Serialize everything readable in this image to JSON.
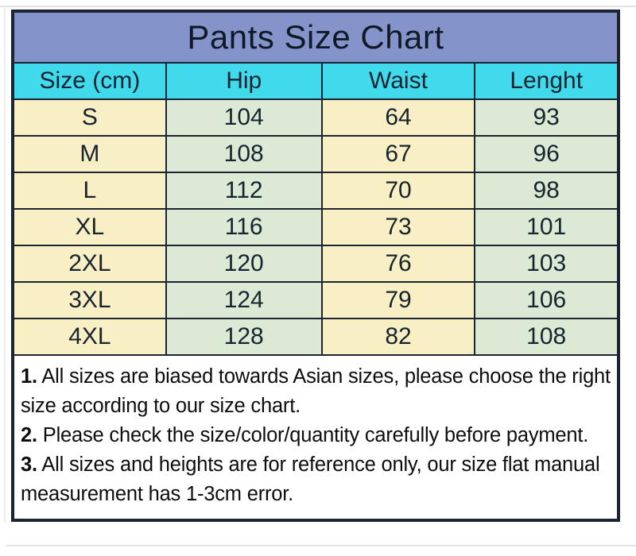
{
  "chart_data": {
    "type": "table",
    "title": "Pants Size Chart",
    "columns": [
      "Size (cm)",
      "Hip",
      "Waist",
      "Lenght"
    ],
    "rows": [
      [
        "S",
        "104",
        "64",
        "93"
      ],
      [
        "M",
        "108",
        "67",
        "96"
      ],
      [
        "L",
        "112",
        "70",
        "98"
      ],
      [
        "XL",
        "116",
        "73",
        "101"
      ],
      [
        "2XL",
        "120",
        "76",
        "103"
      ],
      [
        "3XL",
        "124",
        "79",
        "106"
      ],
      [
        "4XL",
        "128",
        "82",
        "108"
      ]
    ]
  },
  "notes": [
    {
      "num": "1.",
      "text": "All sizes are biased towards Asian sizes, please choose the right size according to our size chart."
    },
    {
      "num": "2.",
      "text": "Please check the size/color/quantity carefully before payment."
    },
    {
      "num": "3.",
      "text": "All sizes and heights are for reference only, our size flat manual measurement has 1-3cm error."
    }
  ],
  "colors": {
    "title-bg": "#8494cb",
    "header-bg": "#41d9ec",
    "col-cream": "#f9efc5",
    "col-green": "#dcead5",
    "border": "#1b2430",
    "table-text": "#17232f",
    "notes-text": "#0d0d0d"
  }
}
